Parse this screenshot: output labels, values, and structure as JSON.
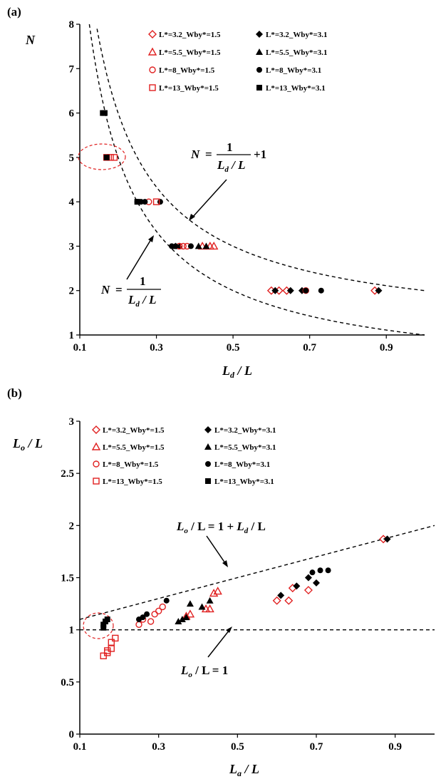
{
  "chart_data": [
    {
      "type": "scatter",
      "panel_label": "(a)",
      "ylabel": "N",
      "xlabel_main": "L",
      "xlabel_sub": "d",
      "xlabel_rest": " / L",
      "xlim": [
        0.1,
        1.0
      ],
      "ylim": [
        1,
        8
      ],
      "xticks": [
        "0.1",
        "0.3",
        "0.5",
        "0.7",
        "0.9"
      ],
      "yticks": [
        "1",
        "2",
        "3",
        "4",
        "5",
        "6",
        "7",
        "8"
      ],
      "grid": false,
      "legend_position": "top-right",
      "series": [
        {
          "name": "L*=3.2_Wby*=1.5",
          "marker": "diamond-open",
          "color": "#e02020",
          "x": [
            0.6,
            0.62,
            0.64,
            0.87
          ],
          "y": [
            2,
            2,
            2,
            2
          ]
        },
        {
          "name": "L*=3.2_Wby*=3.1",
          "marker": "diamond-filled",
          "color": "#000000",
          "x": [
            0.61,
            0.65,
            0.68,
            0.88
          ],
          "y": [
            2,
            2,
            2,
            2
          ]
        },
        {
          "name": "L*=5.5_Wby*=1.5",
          "marker": "triangle-open",
          "color": "#e02020",
          "x": [
            0.42,
            0.44,
            0.45
          ],
          "y": [
            3,
            3,
            3
          ]
        },
        {
          "name": "L*=5.5_Wby*=3.1",
          "marker": "triangle-filled",
          "color": "#000000",
          "x": [
            0.35,
            0.36,
            0.41,
            0.43
          ],
          "y": [
            3,
            3,
            3,
            3
          ]
        },
        {
          "name": "L*=8_Wby*=1.5",
          "marker": "circle-open",
          "color": "#e02020",
          "x": [
            0.28,
            0.36,
            0.37,
            0.38,
            0.69
          ],
          "y": [
            4,
            3,
            3,
            3,
            2
          ]
        },
        {
          "name": "L*=8_Wby*=3.1",
          "marker": "circle-filled",
          "color": "#000000",
          "x": [
            0.25,
            0.26,
            0.27,
            0.31,
            0.34,
            0.35,
            0.39,
            0.69,
            0.73
          ],
          "y": [
            4,
            4,
            4,
            4,
            3,
            3,
            3,
            2,
            2
          ]
        },
        {
          "name": "L*=13_Wby*=1.5",
          "marker": "square-open",
          "color": "#e02020",
          "x": [
            0.17,
            0.18,
            0.19,
            0.3
          ],
          "y": [
            5,
            5,
            5,
            4
          ]
        },
        {
          "name": "L*=13_Wby*=3.1",
          "marker": "square-filled",
          "color": "#000000",
          "x": [
            0.16,
            0.165,
            0.17,
            0.25
          ],
          "y": [
            6,
            6,
            5,
            4
          ]
        }
      ],
      "curves": [
        {
          "label_lhs": "N",
          "label_num": "1",
          "label_den_main": "L",
          "label_den_sub": "d",
          "label_den_rest": " / L",
          "label_tail": "+1",
          "offset": 1
        },
        {
          "label_lhs": "N",
          "label_num": "1",
          "label_den_main": "L",
          "label_den_sub": "d",
          "label_den_rest": " / L",
          "label_tail": "",
          "offset": 0
        }
      ]
    },
    {
      "type": "scatter",
      "panel_label": "(b)",
      "ylabel_main": "L",
      "ylabel_sub": "o",
      "ylabel_rest": " / L",
      "xlabel_main": "L",
      "xlabel_sub": "a",
      "xlabel_rest": " / L",
      "xlim": [
        0.1,
        1.0
      ],
      "ylim": [
        0,
        3
      ],
      "xticks": [
        "0.1",
        "0.3",
        "0.5",
        "0.7",
        "0.9"
      ],
      "yticks": [
        "0",
        "0.5",
        "1",
        "1.5",
        "2",
        "2.5",
        "3"
      ],
      "grid": false,
      "legend_position": "top-left",
      "series": [
        {
          "name": "L*=3.2_Wby*=1.5",
          "marker": "diamond-open",
          "color": "#e02020",
          "x": [
            0.6,
            0.63,
            0.64,
            0.68,
            0.87
          ],
          "y": [
            1.28,
            1.28,
            1.4,
            1.38,
            1.87
          ]
        },
        {
          "name": "L*=3.2_Wby*=3.1",
          "marker": "diamond-filled",
          "color": "#000000",
          "x": [
            0.61,
            0.65,
            0.68,
            0.7,
            0.88
          ],
          "y": [
            1.33,
            1.42,
            1.5,
            1.45,
            1.87
          ]
        },
        {
          "name": "L*=5.5_Wby*=1.5",
          "marker": "triangle-open",
          "color": "#e02020",
          "x": [
            0.37,
            0.38,
            0.42,
            0.43,
            0.44,
            0.45
          ],
          "y": [
            1.13,
            1.15,
            1.2,
            1.2,
            1.35,
            1.37
          ]
        },
        {
          "name": "L*=5.5_Wby*=3.1",
          "marker": "triangle-filled",
          "color": "#000000",
          "x": [
            0.35,
            0.36,
            0.37,
            0.38,
            0.41,
            0.43
          ],
          "y": [
            1.08,
            1.1,
            1.12,
            1.25,
            1.22,
            1.28
          ]
        },
        {
          "name": "L*=8_Wby*=1.5",
          "marker": "circle-open",
          "color": "#e02020",
          "x": [
            0.25,
            0.26,
            0.28,
            0.29,
            0.3,
            0.31
          ],
          "y": [
            1.05,
            1.1,
            1.08,
            1.15,
            1.18,
            1.22
          ]
        },
        {
          "name": "L*=8_Wby*=3.1",
          "marker": "circle-filled",
          "color": "#000000",
          "x": [
            0.25,
            0.26,
            0.27,
            0.32,
            0.69,
            0.71,
            0.73
          ],
          "y": [
            1.1,
            1.12,
            1.15,
            1.28,
            1.55,
            1.57,
            1.57
          ]
        },
        {
          "name": "L*=13_Wby*=1.5",
          "marker": "square-open",
          "color": "#e02020",
          "x": [
            0.16,
            0.17,
            0.17,
            0.18,
            0.18,
            0.19
          ],
          "y": [
            0.75,
            0.78,
            0.8,
            0.82,
            0.88,
            0.92
          ]
        },
        {
          "name": "L*=13_Wby*=3.1",
          "marker": "square-filled",
          "color": "#000000",
          "x": [
            0.16,
            0.16,
            0.165,
            0.17
          ],
          "y": [
            1.02,
            1.05,
            1.08,
            1.1
          ]
        }
      ],
      "lines": [
        {
          "label_main": "L",
          "label_sub": "o",
          "label_rest": " / L = 1 + ",
          "label_main2": "L",
          "label_sub2": "d",
          "label_rest2": " / L",
          "intercept": 1,
          "slope": 1
        },
        {
          "label_main": "L",
          "label_sub": "o",
          "label_rest": " / L = 1",
          "intercept": 1,
          "slope": 0
        }
      ]
    }
  ]
}
